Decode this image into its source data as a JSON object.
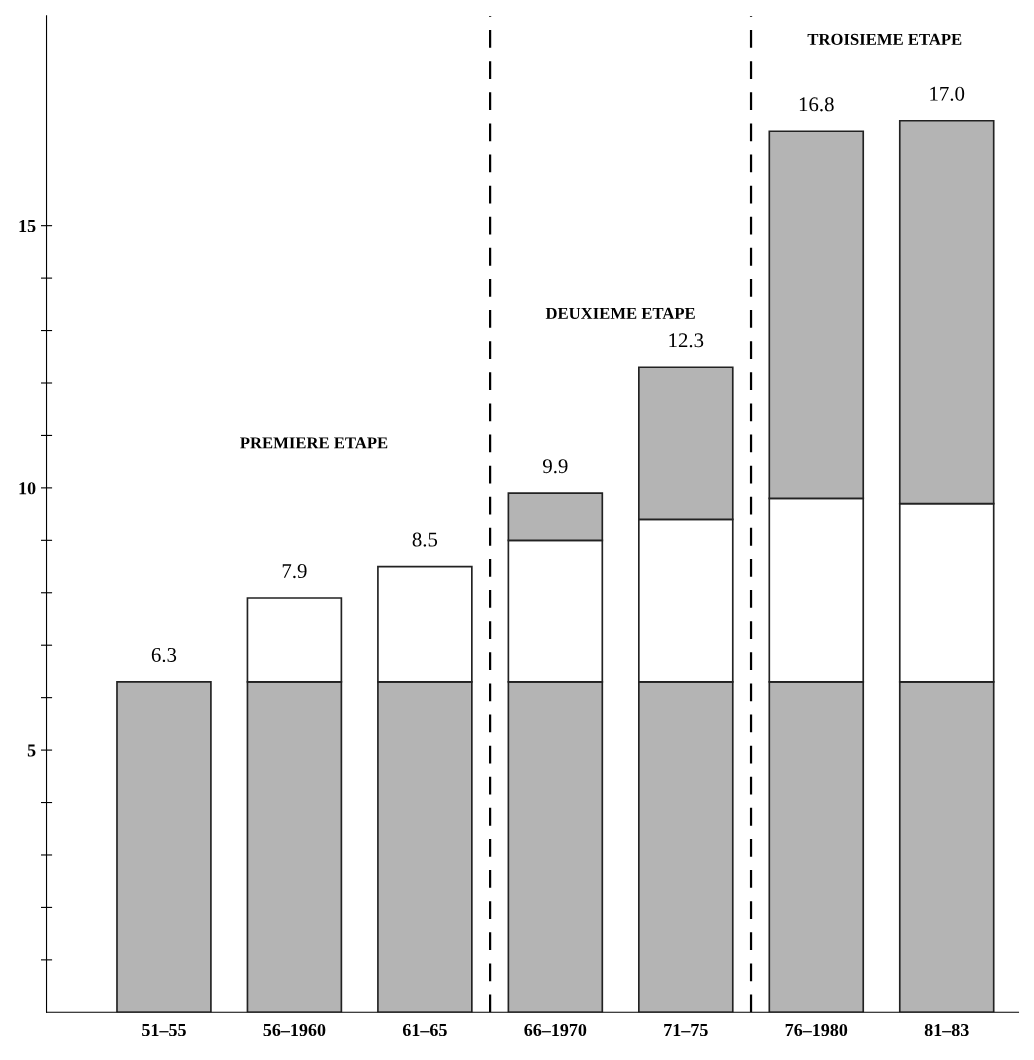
{
  "chart_data": {
    "type": "bar",
    "stacked": true,
    "categories": [
      "51–55",
      "56–1960",
      "61–65",
      "66–1970",
      "71–75",
      "76–1980",
      "81–83"
    ],
    "series": [
      {
        "color": "#b4b4b4",
        "values": [
          6.3,
          6.3,
          6.3,
          6.3,
          6.3,
          6.3,
          6.3
        ]
      },
      {
        "color": "#ffffff",
        "values": [
          null,
          1.6,
          2.2,
          2.7,
          3.1,
          3.5,
          3.4
        ]
      },
      {
        "color": "#b4b4b4",
        "values": [
          null,
          null,
          null,
          0.9,
          2.9,
          7.0,
          7.3
        ]
      }
    ],
    "totals": [
      "6.3",
      "7.9",
      "8.5",
      "9.9",
      "12.3",
      "16.8",
      "17.0"
    ],
    "ylim": [
      0,
      19
    ],
    "yticks": [
      {
        "value": 1,
        "label": null
      },
      {
        "value": 2,
        "label": null
      },
      {
        "value": 3,
        "label": null
      },
      {
        "value": 4,
        "label": null
      },
      5,
      {
        "value": 6,
        "label": null
      },
      {
        "value": 7,
        "label": null
      },
      {
        "value": 8,
        "label": null
      },
      {
        "value": 9,
        "label": null
      },
      10,
      {
        "value": 11,
        "label": null
      },
      {
        "value": 12,
        "label": null
      },
      {
        "value": 13,
        "label": null
      },
      {
        "value": 14,
        "label": null
      },
      15
    ],
    "annotations": [
      "PREMIERE ETAPE",
      "DEUXIEME ETAPE",
      "TROISIEME ETAPE"
    ],
    "grid": false,
    "legend": false
  }
}
